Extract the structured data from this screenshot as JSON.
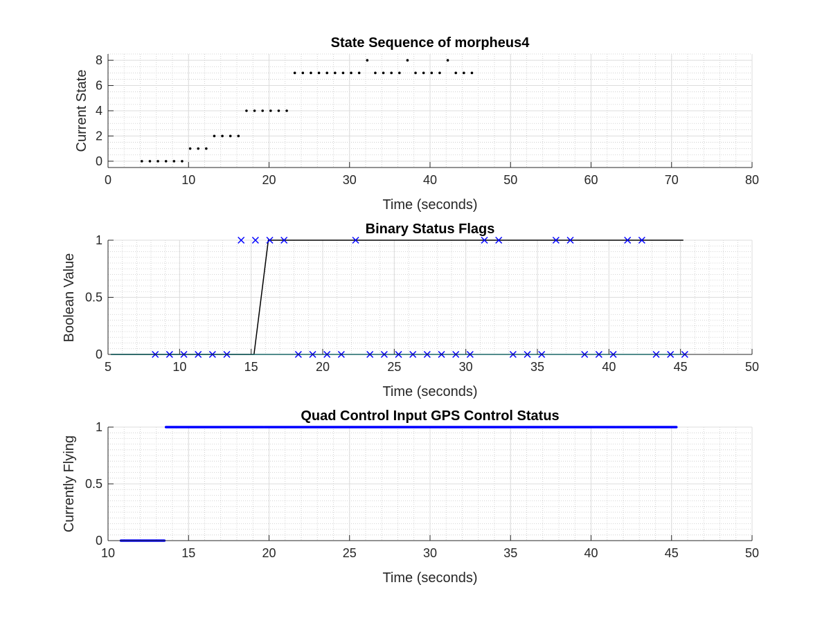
{
  "figure": {
    "background": "#ffffff"
  },
  "chart_data": [
    {
      "type": "scatter",
      "title": "State Sequence of morpheus4",
      "xlabel": "Time (seconds)",
      "ylabel": "Current State",
      "xlim": [
        0,
        80
      ],
      "ylim": [
        -0.5,
        8.5
      ],
      "xticks": [
        0,
        10,
        20,
        30,
        40,
        50,
        60,
        70,
        80
      ],
      "yticks": [
        0,
        2,
        4,
        6,
        8
      ],
      "xminor": 2,
      "yminor": 0.5,
      "grid": true,
      "minor_grid": true,
      "series": [
        {
          "marker": "dot",
          "color": "#000000",
          "points": [
            [
              4.2,
              0
            ],
            [
              5.2,
              0
            ],
            [
              6.2,
              0
            ],
            [
              7.2,
              0
            ],
            [
              8.2,
              0
            ],
            [
              9.2,
              0
            ],
            [
              10.2,
              1
            ],
            [
              11.2,
              1
            ],
            [
              12.2,
              1
            ],
            [
              13.2,
              2
            ],
            [
              14.2,
              2
            ],
            [
              15.2,
              2
            ],
            [
              16.2,
              2
            ],
            [
              17.2,
              4
            ],
            [
              18.2,
              4
            ],
            [
              19.2,
              4
            ],
            [
              20.2,
              4
            ],
            [
              21.2,
              4
            ],
            [
              22.2,
              4
            ],
            [
              23.2,
              7
            ],
            [
              24.2,
              7
            ],
            [
              25.2,
              7
            ],
            [
              26.2,
              7
            ],
            [
              27.2,
              7
            ],
            [
              28.2,
              7
            ],
            [
              29.2,
              7
            ],
            [
              30.2,
              7
            ],
            [
              31.2,
              7
            ],
            [
              32.2,
              8
            ],
            [
              33.2,
              7
            ],
            [
              34.2,
              7
            ],
            [
              35.2,
              7
            ],
            [
              36.2,
              7
            ],
            [
              37.2,
              8
            ],
            [
              38.2,
              7
            ],
            [
              39.2,
              7
            ],
            [
              40.2,
              7
            ],
            [
              41.2,
              7
            ],
            [
              42.2,
              8
            ],
            [
              43.2,
              7
            ],
            [
              44.2,
              7
            ],
            [
              45.2,
              7
            ]
          ]
        }
      ]
    },
    {
      "type": "line",
      "title": "Binary Status Flags",
      "xlabel": "Time (seconds)",
      "ylabel": "Boolean Value",
      "xlim": [
        5,
        50
      ],
      "ylim": [
        0,
        1
      ],
      "xticks": [
        5,
        10,
        15,
        20,
        25,
        30,
        35,
        40,
        45,
        50
      ],
      "yticks": [
        0,
        0.5,
        1
      ],
      "xticklabels": [
        "5",
        "10",
        "15",
        "20",
        "25",
        "30",
        "35",
        "40",
        "45",
        "50"
      ],
      "yticklabels": [
        "0",
        "0.5",
        "1"
      ],
      "xminor": 1,
      "yminor": 0.05,
      "grid": true,
      "minor_grid": true,
      "series": [
        {
          "kind": "line",
          "color": "#000000",
          "points": [
            [
              5.2,
              0
            ],
            [
              15.2,
              0
            ],
            [
              16.2,
              1
            ],
            [
              45.2,
              1
            ]
          ]
        },
        {
          "kind": "line",
          "color": "#00e5e5",
          "points": [
            [
              5.2,
              0
            ],
            [
              45.2,
              0
            ]
          ]
        },
        {
          "kind": "marker",
          "marker": "x",
          "color": "#0000ff",
          "points": [
            [
              8.3,
              0
            ],
            [
              9.3,
              0
            ],
            [
              10.3,
              0
            ],
            [
              11.3,
              0
            ],
            [
              12.3,
              0
            ],
            [
              13.3,
              0
            ],
            [
              14.3,
              1
            ],
            [
              15.3,
              1
            ],
            [
              16.3,
              1
            ],
            [
              17.3,
              1
            ],
            [
              18.3,
              0
            ],
            [
              19.3,
              0
            ],
            [
              20.3,
              0
            ],
            [
              21.3,
              0
            ],
            [
              22.3,
              1
            ],
            [
              23.3,
              0
            ],
            [
              24.3,
              0
            ],
            [
              25.3,
              0
            ],
            [
              26.3,
              0
            ],
            [
              27.3,
              0
            ],
            [
              28.3,
              0
            ],
            [
              29.3,
              0
            ],
            [
              30.3,
              0
            ],
            [
              31.3,
              1
            ],
            [
              32.3,
              1
            ],
            [
              33.3,
              0
            ],
            [
              34.3,
              0
            ],
            [
              35.3,
              0
            ],
            [
              36.3,
              1
            ],
            [
              37.3,
              1
            ],
            [
              38.3,
              0
            ],
            [
              39.3,
              0
            ],
            [
              40.3,
              0
            ],
            [
              41.3,
              1
            ],
            [
              42.3,
              1
            ],
            [
              43.3,
              0
            ],
            [
              44.3,
              0
            ],
            [
              45.3,
              0
            ]
          ]
        }
      ]
    },
    {
      "type": "scatter",
      "title": "Quad Control Input GPS Control Status",
      "xlabel": "Time (seconds)",
      "ylabel": "Currently Flying",
      "xlim": [
        10,
        50
      ],
      "ylim": [
        0,
        1
      ],
      "xticks": [
        10,
        15,
        20,
        25,
        30,
        35,
        40,
        45,
        50
      ],
      "yticks": [
        0,
        0.5,
        1
      ],
      "xticklabels": [
        "10",
        "15",
        "20",
        "25",
        "30",
        "35",
        "40",
        "45",
        "50"
      ],
      "yticklabels": [
        "0",
        "0.5",
        "1"
      ],
      "xminor": 1,
      "yminor": 0.05,
      "grid": true,
      "minor_grid": true,
      "series": [
        {
          "kind": "dense",
          "marker": "dot",
          "color": "#0000ff",
          "segments": [
            {
              "x_start": 10.8,
              "x_end": 13.5,
              "value": 0,
              "step": 0.05
            },
            {
              "x_start": 13.6,
              "x_end": 45.3,
              "value": 1,
              "step": 0.05
            }
          ]
        }
      ]
    }
  ]
}
